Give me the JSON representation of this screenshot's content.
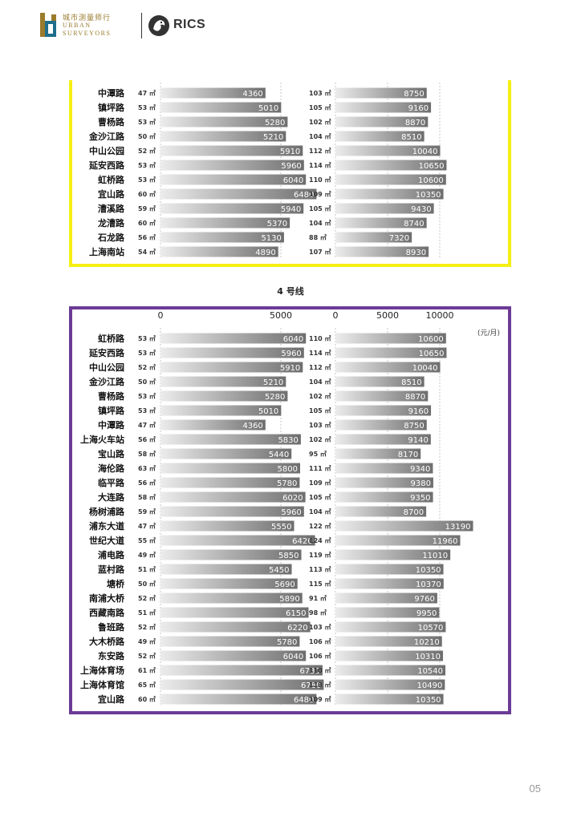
{
  "header": {
    "urban_cn": "城市测量师行",
    "urban_en_line1": "URBAN",
    "urban_en_line2": "SURVEYORS",
    "rics": "RICS"
  },
  "section_label": "4 号线",
  "page_number": "05",
  "unit_label": "(元/月)",
  "colors": {
    "panel1_border": "#f6ef12",
    "panel2_border": "#6c3b96",
    "bar_gradient_start": "#e6e6e6",
    "bar_gradient_end": "#707070"
  },
  "chart_data": [
    {
      "type": "bar",
      "orientation": "horizontal",
      "axis_ticks_left": [],
      "axis_ticks_right": [],
      "grid": true,
      "rows": [
        {
          "station": "中潭路",
          "area": "47 ㎡",
          "left_value": 4360,
          "right_area": "103 ㎡",
          "right_value": 8750
        },
        {
          "station": "镇坪路",
          "area": "53 ㎡",
          "left_value": 5010,
          "right_area": "105 ㎡",
          "right_value": 9160
        },
        {
          "station": "曹杨路",
          "area": "53 ㎡",
          "left_value": 5280,
          "right_area": "102 ㎡",
          "right_value": 8870
        },
        {
          "station": "金沙江路",
          "area": "50 ㎡",
          "left_value": 5210,
          "right_area": "104 ㎡",
          "right_value": 8510
        },
        {
          "station": "中山公园",
          "area": "52 ㎡",
          "left_value": 5910,
          "right_area": "112 ㎡",
          "right_value": 10040
        },
        {
          "station": "延安西路",
          "area": "53 ㎡",
          "left_value": 5960,
          "right_area": "114 ㎡",
          "right_value": 10650
        },
        {
          "station": "虹桥路",
          "area": "53 ㎡",
          "left_value": 6040,
          "right_area": "110 ㎡",
          "right_value": 10600
        },
        {
          "station": "宜山路",
          "area": "60 ㎡",
          "left_value": 6480,
          "right_area": "109 ㎡",
          "right_value": 10350
        },
        {
          "station": "漕溪路",
          "area": "59 ㎡",
          "left_value": 5940,
          "right_area": "105 ㎡",
          "right_value": 9430
        },
        {
          "station": "龙漕路",
          "area": "60 ㎡",
          "left_value": 5370,
          "right_area": "104 ㎡",
          "right_value": 8740
        },
        {
          "station": "石龙路",
          "area": "56 ㎡",
          "left_value": 5130,
          "right_area": "88 ㎡",
          "right_value": 7320
        },
        {
          "station": "上海南站",
          "area": "54 ㎡",
          "left_value": 4890,
          "right_area": "107 ㎡",
          "right_value": 8930
        }
      ]
    },
    {
      "type": "bar",
      "orientation": "horizontal",
      "axis_ticks_left": [
        "0",
        "5000"
      ],
      "axis_ticks_right": [
        "0",
        "5000",
        "10000"
      ],
      "grid": true,
      "rows": [
        {
          "station": "虹桥路",
          "area": "53 ㎡",
          "left_value": 6040,
          "right_area": "110 ㎡",
          "right_value": 10600
        },
        {
          "station": "延安西路",
          "area": "53 ㎡",
          "left_value": 5960,
          "right_area": "114 ㎡",
          "right_value": 10650
        },
        {
          "station": "中山公园",
          "area": "52 ㎡",
          "left_value": 5910,
          "right_area": "112 ㎡",
          "right_value": 10040
        },
        {
          "station": "金沙江路",
          "area": "50 ㎡",
          "left_value": 5210,
          "right_area": "104 ㎡",
          "right_value": 8510
        },
        {
          "station": "曹杨路",
          "area": "53 ㎡",
          "left_value": 5280,
          "right_area": "102 ㎡",
          "right_value": 8870
        },
        {
          "station": "镇坪路",
          "area": "53 ㎡",
          "left_value": 5010,
          "right_area": "105 ㎡",
          "right_value": 9160
        },
        {
          "station": "中潭路",
          "area": "47 ㎡",
          "left_value": 4360,
          "right_area": "103 ㎡",
          "right_value": 8750
        },
        {
          "station": "上海火车站",
          "area": "56 ㎡",
          "left_value": 5830,
          "right_area": "102 ㎡",
          "right_value": 9140
        },
        {
          "station": "宝山路",
          "area": "58 ㎡",
          "left_value": 5440,
          "right_area": "95 ㎡",
          "right_value": 8170
        },
        {
          "station": "海伦路",
          "area": "63 ㎡",
          "left_value": 5800,
          "right_area": "111 ㎡",
          "right_value": 9340
        },
        {
          "station": "临平路",
          "area": "56 ㎡",
          "left_value": 5780,
          "right_area": "109 ㎡",
          "right_value": 9380
        },
        {
          "station": "大连路",
          "area": "58 ㎡",
          "left_value": 6020,
          "right_area": "105 ㎡",
          "right_value": 9350
        },
        {
          "station": "杨树浦路",
          "area": "59 ㎡",
          "left_value": 5960,
          "right_area": "104 ㎡",
          "right_value": 8700
        },
        {
          "station": "浦东大道",
          "area": "47 ㎡",
          "left_value": 5550,
          "right_area": "122 ㎡",
          "right_value": 13190
        },
        {
          "station": "世纪大道",
          "area": "55 ㎡",
          "left_value": 6420,
          "right_area": "124 ㎡",
          "right_value": 11960
        },
        {
          "station": "浦电路",
          "area": "49 ㎡",
          "left_value": 5850,
          "right_area": "119 ㎡",
          "right_value": 11010
        },
        {
          "station": "蓝村路",
          "area": "51 ㎡",
          "left_value": 5450,
          "right_area": "113 ㎡",
          "right_value": 10350
        },
        {
          "station": "塘桥",
          "area": "50 ㎡",
          "left_value": 5690,
          "right_area": "115 ㎡",
          "right_value": 10370
        },
        {
          "station": "南浦大桥",
          "area": "52 ㎡",
          "left_value": 5890,
          "right_area": "91 ㎡",
          "right_value": 9760
        },
        {
          "station": "西藏南路",
          "area": "51 ㎡",
          "left_value": 6150,
          "right_area": "98 ㎡",
          "right_value": 9950
        },
        {
          "station": "鲁班路",
          "area": "52 ㎡",
          "left_value": 6220,
          "right_area": "103 ㎡",
          "right_value": 10570
        },
        {
          "station": "大木桥路",
          "area": "49 ㎡",
          "left_value": 5780,
          "right_area": "106 ㎡",
          "right_value": 10210
        },
        {
          "station": "东安路",
          "area": "52 ㎡",
          "left_value": 6040,
          "right_area": "106 ㎡",
          "right_value": 10310
        },
        {
          "station": "上海体育场",
          "area": "61 ㎡",
          "left_value": 6730,
          "right_area": "110 ㎡",
          "right_value": 10540
        },
        {
          "station": "上海体育馆",
          "area": "65 ㎡",
          "left_value": 6780,
          "right_area": "113 ㎡",
          "right_value": 10490
        },
        {
          "station": "宜山路",
          "area": "60 ㎡",
          "left_value": 6480,
          "right_area": "109 ㎡",
          "right_value": 10350
        }
      ]
    }
  ]
}
